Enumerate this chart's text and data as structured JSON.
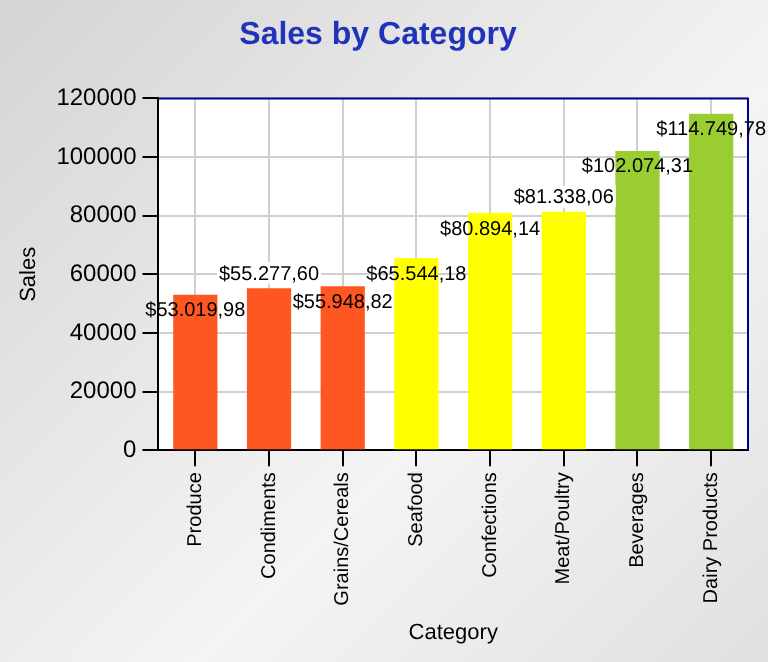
{
  "chart_data": {
    "type": "bar",
    "title": "Sales by Category",
    "xlabel": "Category",
    "ylabel": "Sales",
    "categories": [
      "Produce",
      "Condiments",
      "Grains/Cereals",
      "Seafood",
      "Confections",
      "Meat/Poultry",
      "Beverages",
      "Dairy Products"
    ],
    "values": [
      53019.98,
      55277.6,
      55948.82,
      65544.18,
      80894.14,
      81338.06,
      102074.31,
      114749.78
    ],
    "colors": [
      "#ff5722",
      "#ff5722",
      "#ff5722",
      "#ffff00",
      "#ffff00",
      "#ffff00",
      "#9acd32",
      "#9acd32"
    ],
    "value_labels": [
      "$53.019,98",
      "$55.277,60",
      "$55.948,82",
      "$65.544,18",
      "$80.894,14",
      "$81.338,06",
      "$102.074,31",
      "$114.749,78"
    ],
    "ylim": [
      0,
      120000
    ],
    "yticks": [
      0,
      20000,
      40000,
      60000,
      80000,
      100000,
      120000
    ],
    "grid": true
  }
}
